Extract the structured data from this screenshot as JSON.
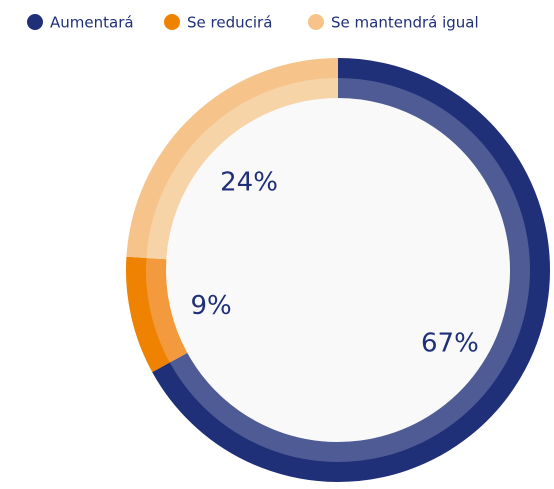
{
  "chart_data": {
    "type": "pie",
    "categories": [
      "Aumentará",
      "Se reducirá",
      "Se mantendrá igual"
    ],
    "values": [
      67,
      9,
      24
    ],
    "value_labels": [
      "67%",
      "9%",
      "24%"
    ],
    "colors": [
      "#1f2f78",
      "#ef8200",
      "#f6c48a"
    ],
    "inner_colors": [
      "#4f5b95",
      "#f29a3d",
      "#f7d3a8"
    ],
    "legend": "top-left"
  }
}
